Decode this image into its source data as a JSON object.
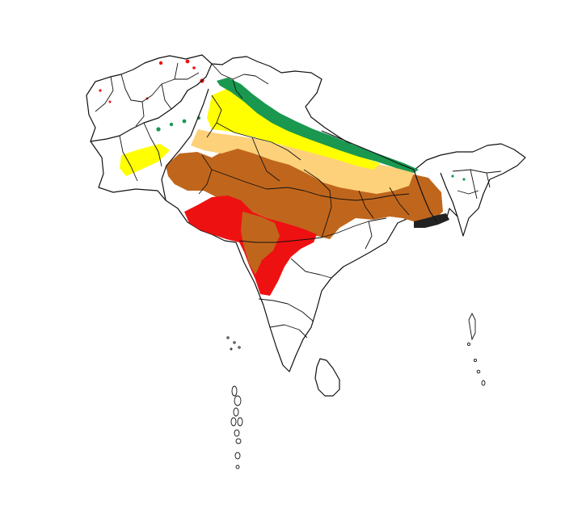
{
  "map": {
    "region": "South Asia",
    "category_colors": {
      "class_1": "#1a9850",
      "class_2": "#ffff00",
      "class_3": "#fdd17a",
      "class_4": "#c0661c",
      "class_5": "#ee1111"
    },
    "zones": [
      {
        "id": "himalayan-foothills-band",
        "class": "class_1"
      },
      {
        "id": "punjab-upper-gangetic-plain",
        "class": "class_2"
      },
      {
        "id": "gangetic-plain",
        "class": "class_3"
      },
      {
        "id": "central-india-and-rajasthan",
        "class": "class_4"
      },
      {
        "id": "gujarat-maharashtra",
        "class": "class_5"
      }
    ]
  }
}
